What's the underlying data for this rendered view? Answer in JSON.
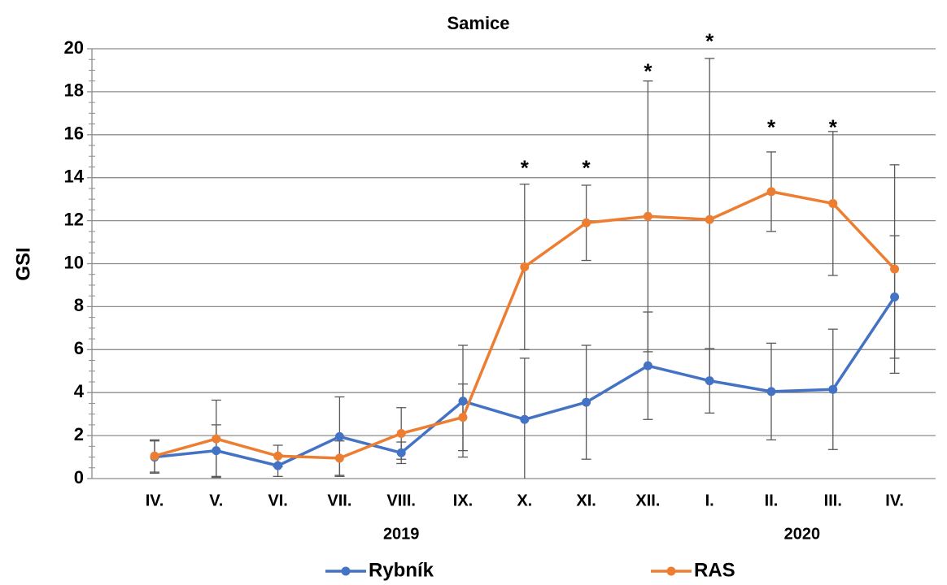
{
  "chart_data": {
    "type": "line",
    "title": "Samice",
    "ylabel": "GSI",
    "categories": [
      "IV.",
      "V.",
      "VI.",
      "VII.",
      "VIII.",
      "IX.",
      "X.",
      "XI.",
      "XII.",
      "I.",
      "II.",
      "III.",
      "IV."
    ],
    "series": [
      {
        "name": "Rybník",
        "color": "#4472c4",
        "values": [
          1.0,
          1.3,
          0.6,
          1.95,
          1.2,
          3.6,
          2.75,
          3.55,
          5.25,
          4.55,
          4.05,
          4.15,
          8.45
        ],
        "errors": [
          0.75,
          1.2,
          0.5,
          1.85,
          0.5,
          2.6,
          2.85,
          2.65,
          2.5,
          1.5,
          2.25,
          2.8,
          2.85
        ]
      },
      {
        "name": "RAS",
        "color": "#ed7d31",
        "values": [
          1.05,
          1.85,
          1.05,
          0.95,
          2.1,
          2.85,
          9.85,
          11.9,
          12.2,
          12.05,
          13.35,
          12.8,
          9.75
        ],
        "errors": [
          0.75,
          1.8,
          0.5,
          0.8,
          1.2,
          1.55,
          3.85,
          1.75,
          6.3,
          7.5,
          1.85,
          3.35,
          4.85
        ]
      }
    ],
    "annotations": [
      {
        "text": "*",
        "category": "X.",
        "y": 14.6
      },
      {
        "text": "*",
        "category": "XI.",
        "y": 14.6
      },
      {
        "text": "*",
        "category": "XII.",
        "y": 19.1
      },
      {
        "text": "*",
        "category": "I.",
        "y": 20.5
      },
      {
        "text": "*",
        "category": "II.",
        "y": 16.5
      },
      {
        "text": "*",
        "category": "III.",
        "y": 16.5
      }
    ],
    "year_labels": [
      {
        "label": "2019",
        "at": [
          "VIII."
        ]
      },
      {
        "label": "2020",
        "at": [
          "II.",
          "III."
        ]
      }
    ],
    "ylim": [
      0,
      20
    ],
    "yticks": [
      0,
      2,
      4,
      6,
      8,
      10,
      12,
      14,
      16,
      18,
      20
    ],
    "grid": true,
    "legend": "bottom"
  }
}
